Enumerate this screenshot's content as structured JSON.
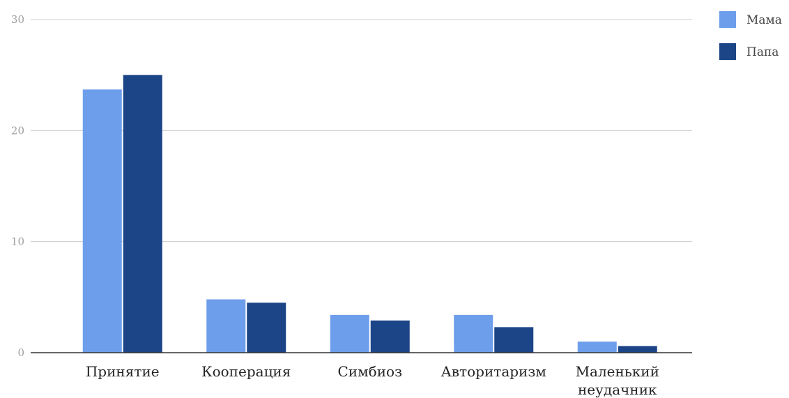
{
  "chart_data": {
    "type": "bar",
    "title": "",
    "xlabel": "",
    "ylabel": "",
    "categories": [
      [
        "Принятие"
      ],
      [
        "Кооперация"
      ],
      [
        "Симбиоз"
      ],
      [
        "Авторитаризм"
      ],
      [
        "Маленький",
        "неудачник"
      ]
    ],
    "series": [
      {
        "name": "Мама",
        "color": "#6d9eeb",
        "values": [
          23.7,
          4.8,
          3.4,
          3.4,
          1.0
        ]
      },
      {
        "name": "Папа",
        "color": "#1c4587",
        "values": [
          25.0,
          4.5,
          2.9,
          2.3,
          0.6
        ]
      }
    ],
    "ylim": [
      0,
      30
    ],
    "yticks": [
      0,
      10,
      20,
      30
    ],
    "grid": true,
    "legend_position": "top-right"
  }
}
